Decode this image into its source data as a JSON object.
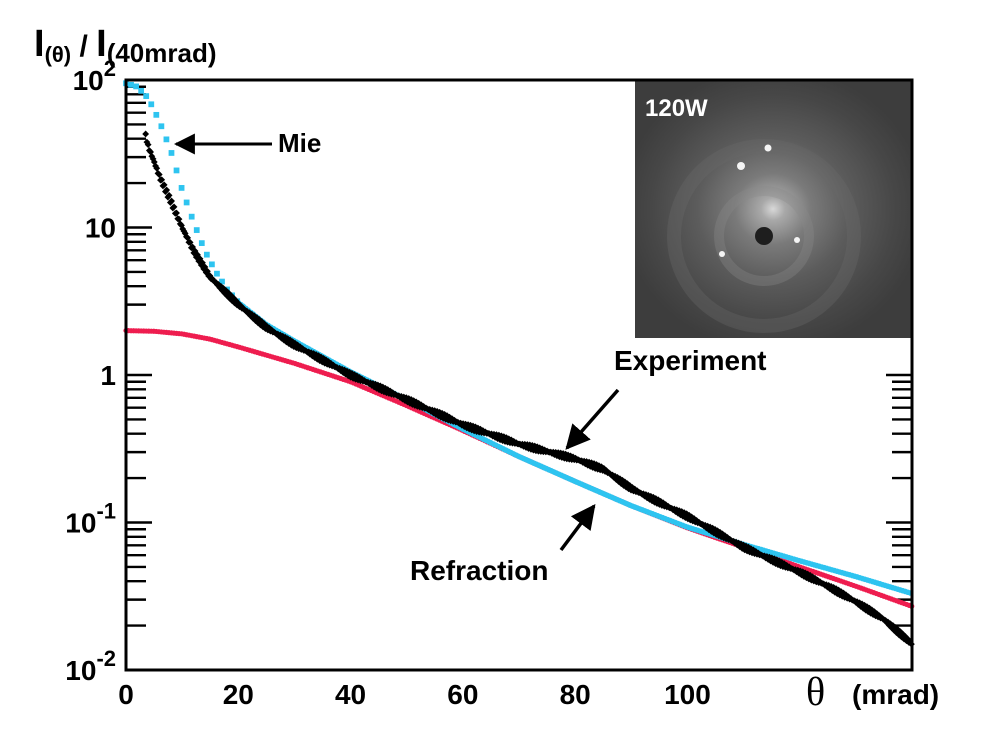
{
  "chart_data": {
    "type": "scatter",
    "title": "",
    "ylabel_main": "I",
    "ylabel_num_sub": "(θ)",
    "ylabel_sep": " / ",
    "ylabel_den": "I",
    "ylabel_den_sub": "(40mrad)",
    "xlabel_symbol": "θ",
    "xlabel_unit": "(mrad)",
    "x_scale": "linear",
    "y_scale": "log",
    "xlim": [
      0,
      140
    ],
    "ylim": [
      0.01,
      100
    ],
    "x_ticks": [
      {
        "value": 0,
        "label": "0"
      },
      {
        "value": 20,
        "label": "20"
      },
      {
        "value": 40,
        "label": "40"
      },
      {
        "value": 60,
        "label": "60"
      },
      {
        "value": 80,
        "label": "80"
      },
      {
        "value": 100,
        "label": "100"
      }
    ],
    "y_ticks": [
      {
        "value": 100,
        "base": "10",
        "exp": "2"
      },
      {
        "value": 10,
        "base": "10",
        "exp": ""
      },
      {
        "value": 1,
        "base": "1",
        "exp": ""
      },
      {
        "value": 0.1,
        "base": "10",
        "exp": "-1"
      },
      {
        "value": 0.01,
        "base": "10",
        "exp": "-2"
      }
    ],
    "series": [
      {
        "name": "Experiment",
        "color": "#000000",
        "x": [
          3.5,
          4,
          5,
          6,
          8,
          10,
          12,
          15,
          20,
          25,
          30,
          40,
          50,
          60,
          70,
          80,
          85,
          90,
          100,
          110,
          120,
          125,
          130,
          135,
          140
        ],
        "y": [
          42,
          35,
          28,
          22,
          15,
          10,
          7,
          4.6,
          3.0,
          2.1,
          1.6,
          1.0,
          0.68,
          0.46,
          0.34,
          0.27,
          0.23,
          0.17,
          0.11,
          0.068,
          0.046,
          0.037,
          0.029,
          0.022,
          0.015
        ]
      },
      {
        "name": "Mie",
        "color": "#2ec4f0",
        "x": [
          0,
          2,
          4,
          6,
          8,
          10,
          12,
          14,
          16,
          18,
          20,
          25,
          30,
          40,
          50,
          60,
          70,
          80,
          90,
          100,
          110,
          120,
          130,
          140
        ],
        "y": [
          95,
          90,
          75,
          52,
          33,
          18,
          11,
          7.0,
          5.0,
          3.8,
          3.1,
          2.2,
          1.7,
          1.05,
          0.68,
          0.43,
          0.28,
          0.19,
          0.13,
          0.093,
          0.071,
          0.055,
          0.043,
          0.033
        ]
      },
      {
        "name": "Refraction",
        "color": "#ee1d4f",
        "x": [
          0,
          5,
          10,
          15,
          20,
          30,
          40,
          50,
          60,
          70,
          80,
          90,
          100,
          110,
          120,
          130,
          140
        ],
        "y": [
          2.0,
          1.98,
          1.9,
          1.75,
          1.55,
          1.2,
          0.9,
          0.62,
          0.42,
          0.28,
          0.19,
          0.13,
          0.092,
          0.068,
          0.05,
          0.037,
          0.027
        ]
      }
    ],
    "annotations": [
      {
        "text": "Mie"
      },
      {
        "text": "Experiment"
      },
      {
        "text": "Refraction"
      }
    ],
    "inset_label": "120W"
  }
}
